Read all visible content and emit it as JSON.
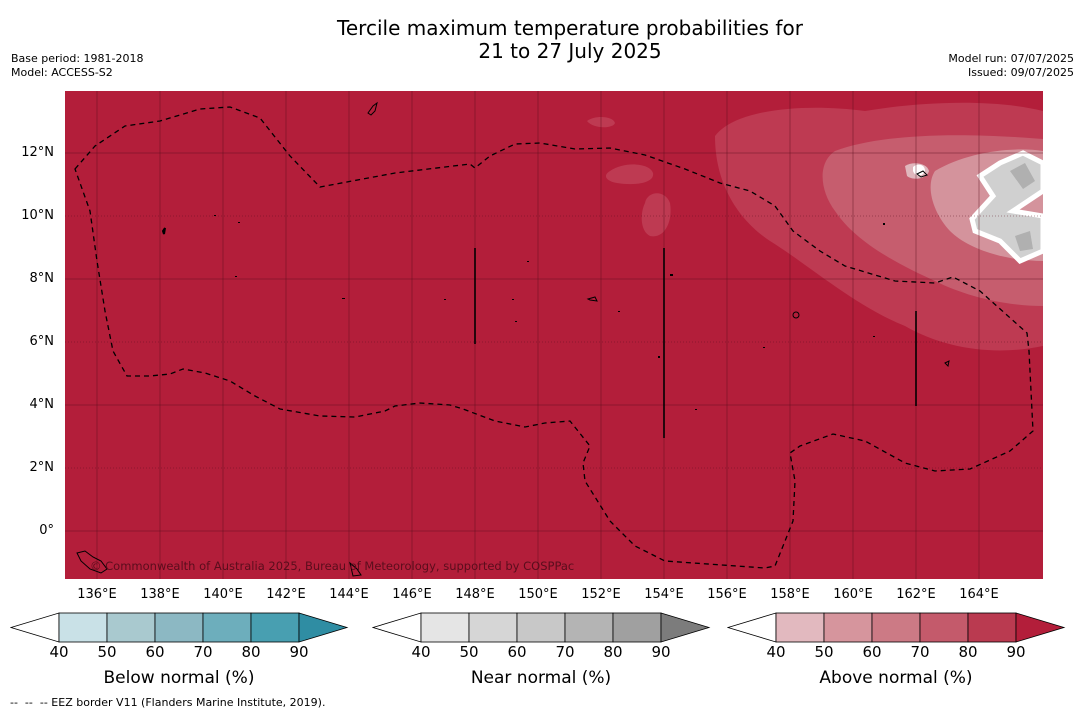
{
  "header": {
    "title_line1": "Tercile maximum temperature probabilities for",
    "title_line2": "21 to 27 July 2025",
    "base_period": "Base period: 1981-2018",
    "model": "Model: ACCESS-S2",
    "model_run": "Model run: 07/07/2025",
    "issued": "Issued: 09/07/2025"
  },
  "map": {
    "lat_labels": [
      "12°N",
      "10°N",
      "8°N",
      "6°N",
      "4°N",
      "2°N",
      "0°"
    ],
    "lon_labels": [
      "136°E",
      "138°E",
      "140°E",
      "142°E",
      "144°E",
      "146°E",
      "148°E",
      "150°E",
      "152°E",
      "154°E",
      "156°E",
      "158°E",
      "160°E",
      "162°E",
      "164°E"
    ],
    "copyright": "© Commonwealth of Australia 2025, Bureau of Meteorology, supported by COSPPac",
    "base_color": "#b31e3a"
  },
  "colorbars": [
    {
      "label": "Below normal (%)",
      "ticks": [
        "40",
        "50",
        "60",
        "70",
        "80",
        "90"
      ],
      "colors": [
        "#ffffff",
        "#c9e1e7",
        "#a9c9cf",
        "#8cb8c3",
        "#6daebc",
        "#489fb1",
        "#2f8da3"
      ]
    },
    {
      "label": "Near normal (%)",
      "ticks": [
        "40",
        "50",
        "60",
        "70",
        "80",
        "90"
      ],
      "colors": [
        "#ffffff",
        "#e5e5e5",
        "#d6d6d6",
        "#c8c8c8",
        "#b4b4b4",
        "#a0a0a0",
        "#7c7c7c"
      ]
    },
    {
      "label": "Above normal (%)",
      "ticks": [
        "40",
        "50",
        "60",
        "70",
        "80",
        "90"
      ],
      "colors": [
        "#ffffff",
        "#e2b9bf",
        "#d6959d",
        "#cc7a85",
        "#c45a6b",
        "#ba3a50",
        "#b31e3a"
      ]
    }
  ],
  "footer": {
    "legend_line": "--  --  -- EEZ border V11 (Flanders Marine Institute, 2019)."
  }
}
